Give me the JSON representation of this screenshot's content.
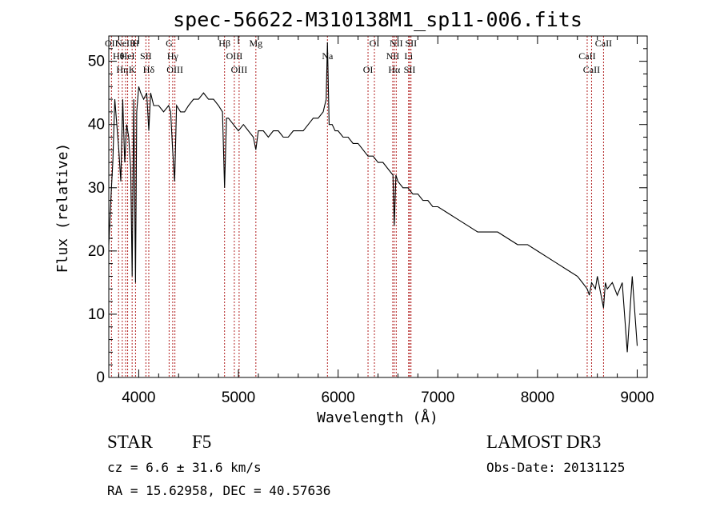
{
  "chart_data": {
    "type": "line",
    "title": "spec-56622-M310138M1_sp11-006.fits",
    "xlabel": "Wavelength (Å)",
    "ylabel": "Flux (relative)",
    "xlim": [
      3700,
      9100
    ],
    "ylim": [
      0,
      54
    ],
    "xticks": [
      4000,
      5000,
      6000,
      7000,
      8000,
      9000
    ],
    "yticks": [
      0,
      10,
      20,
      30,
      40,
      50
    ],
    "series": [
      {
        "name": "spectrum",
        "x": [
          3700,
          3720,
          3740,
          3760,
          3780,
          3800,
          3820,
          3840,
          3860,
          3880,
          3900,
          3920,
          3934,
          3950,
          3968,
          3980,
          4000,
          4020,
          4050,
          4080,
          4101,
          4120,
          4150,
          4200,
          4250,
          4300,
          4320,
          4340,
          4360,
          4380,
          4420,
          4460,
          4500,
          4550,
          4600,
          4650,
          4700,
          4750,
          4800,
          4840,
          4861,
          4880,
          4900,
          4950,
          5000,
          5050,
          5100,
          5150,
          5175,
          5200,
          5250,
          5300,
          5350,
          5400,
          5450,
          5500,
          5550,
          5600,
          5650,
          5700,
          5750,
          5800,
          5850,
          5880,
          5893,
          5910,
          5940,
          5970,
          6000,
          6050,
          6100,
          6150,
          6200,
          6250,
          6300,
          6350,
          6400,
          6450,
          6500,
          6550,
          6563,
          6580,
          6600,
          6650,
          6700,
          6750,
          6800,
          6850,
          6900,
          6950,
          7000,
          7100,
          7200,
          7300,
          7400,
          7500,
          7600,
          7700,
          7800,
          7900,
          8000,
          8100,
          8200,
          8300,
          8400,
          8450,
          8498,
          8520,
          8542,
          8580,
          8600,
          8662,
          8680,
          8700,
          8750,
          8800,
          8850,
          8900,
          8950,
          9000
        ],
        "y": [
          21,
          28,
          34,
          44,
          40,
          36,
          31,
          44,
          34,
          40,
          38,
          33,
          16,
          44,
          15,
          42,
          46,
          45,
          44,
          45,
          39,
          45,
          43,
          43,
          42,
          43,
          42,
          36,
          31,
          43,
          42,
          42,
          43,
          44,
          44,
          45,
          44,
          44,
          43,
          42,
          30,
          41,
          41,
          40,
          39,
          40,
          39,
          38,
          36,
          39,
          39,
          38,
          39,
          39,
          38,
          38,
          39,
          39,
          39,
          40,
          41,
          41,
          42,
          44,
          53,
          40,
          40,
          39,
          39,
          38,
          38,
          37,
          37,
          36,
          35,
          35,
          34,
          34,
          33,
          32,
          24,
          32,
          31,
          30,
          30,
          29,
          29,
          28,
          28,
          27,
          27,
          26,
          25,
          24,
          23,
          23,
          23,
          22,
          21,
          21,
          20,
          19,
          18,
          17,
          16,
          15,
          14,
          13,
          15,
          14,
          16,
          11,
          15,
          14,
          15,
          13,
          15,
          4,
          16,
          5
        ]
      }
    ],
    "lines": [
      {
        "x": 3727,
        "labels": [
          "OII"
        ]
      },
      {
        "x": 3798,
        "labels": [
          "Hθ"
        ]
      },
      {
        "x": 3835,
        "labels": [
          "Hη"
        ]
      },
      {
        "x": 3869,
        "labels": [
          "NeIII"
        ]
      },
      {
        "x": 3889,
        "labels": [
          "HeI"
        ]
      },
      {
        "x": 3934,
        "labels": [
          "K"
        ]
      },
      {
        "x": 3968,
        "labels": [
          "H"
        ]
      },
      {
        "x": 4072,
        "labels": [
          "SII"
        ]
      },
      {
        "x": 4101,
        "labels": [
          "Hδ"
        ]
      },
      {
        "x": 4305,
        "labels": [
          "G"
        ]
      },
      {
        "x": 4341,
        "labels": [
          "Hγ"
        ]
      },
      {
        "x": 4363,
        "labels": [
          "OIII"
        ]
      },
      {
        "x": 4861,
        "labels": [
          "Hβ"
        ]
      },
      {
        "x": 4959,
        "labels": [
          "OIII"
        ]
      },
      {
        "x": 5007,
        "labels": [
          "OIII"
        ]
      },
      {
        "x": 5175,
        "labels": [
          "Mg"
        ]
      },
      {
        "x": 5893,
        "labels": [
          "Na"
        ]
      },
      {
        "x": 6300,
        "labels": [
          "OI"
        ]
      },
      {
        "x": 6364,
        "labels": [
          "OI"
        ]
      },
      {
        "x": 6548,
        "labels": [
          "NII"
        ]
      },
      {
        "x": 6563,
        "labels": [
          "Hα"
        ]
      },
      {
        "x": 6583,
        "labels": [
          "NII"
        ]
      },
      {
        "x": 6707,
        "labels": [
          "Li"
        ]
      },
      {
        "x": 6717,
        "labels": [
          "SII"
        ]
      },
      {
        "x": 6731,
        "labels": [
          "SII"
        ]
      },
      {
        "x": 8498,
        "labels": [
          "CaII"
        ]
      },
      {
        "x": 8542,
        "labels": [
          "CaII"
        ]
      },
      {
        "x": 8662,
        "labels": [
          "CaII"
        ]
      }
    ]
  },
  "info": {
    "object_class": "STAR",
    "subclass": "F5",
    "survey": "LAMOST DR3",
    "cz": "cz = 6.6 ± 31.6 km/s",
    "obs_date": "Obs-Date: 20131125",
    "coords": "RA =  15.62958, DEC =  40.57636"
  }
}
